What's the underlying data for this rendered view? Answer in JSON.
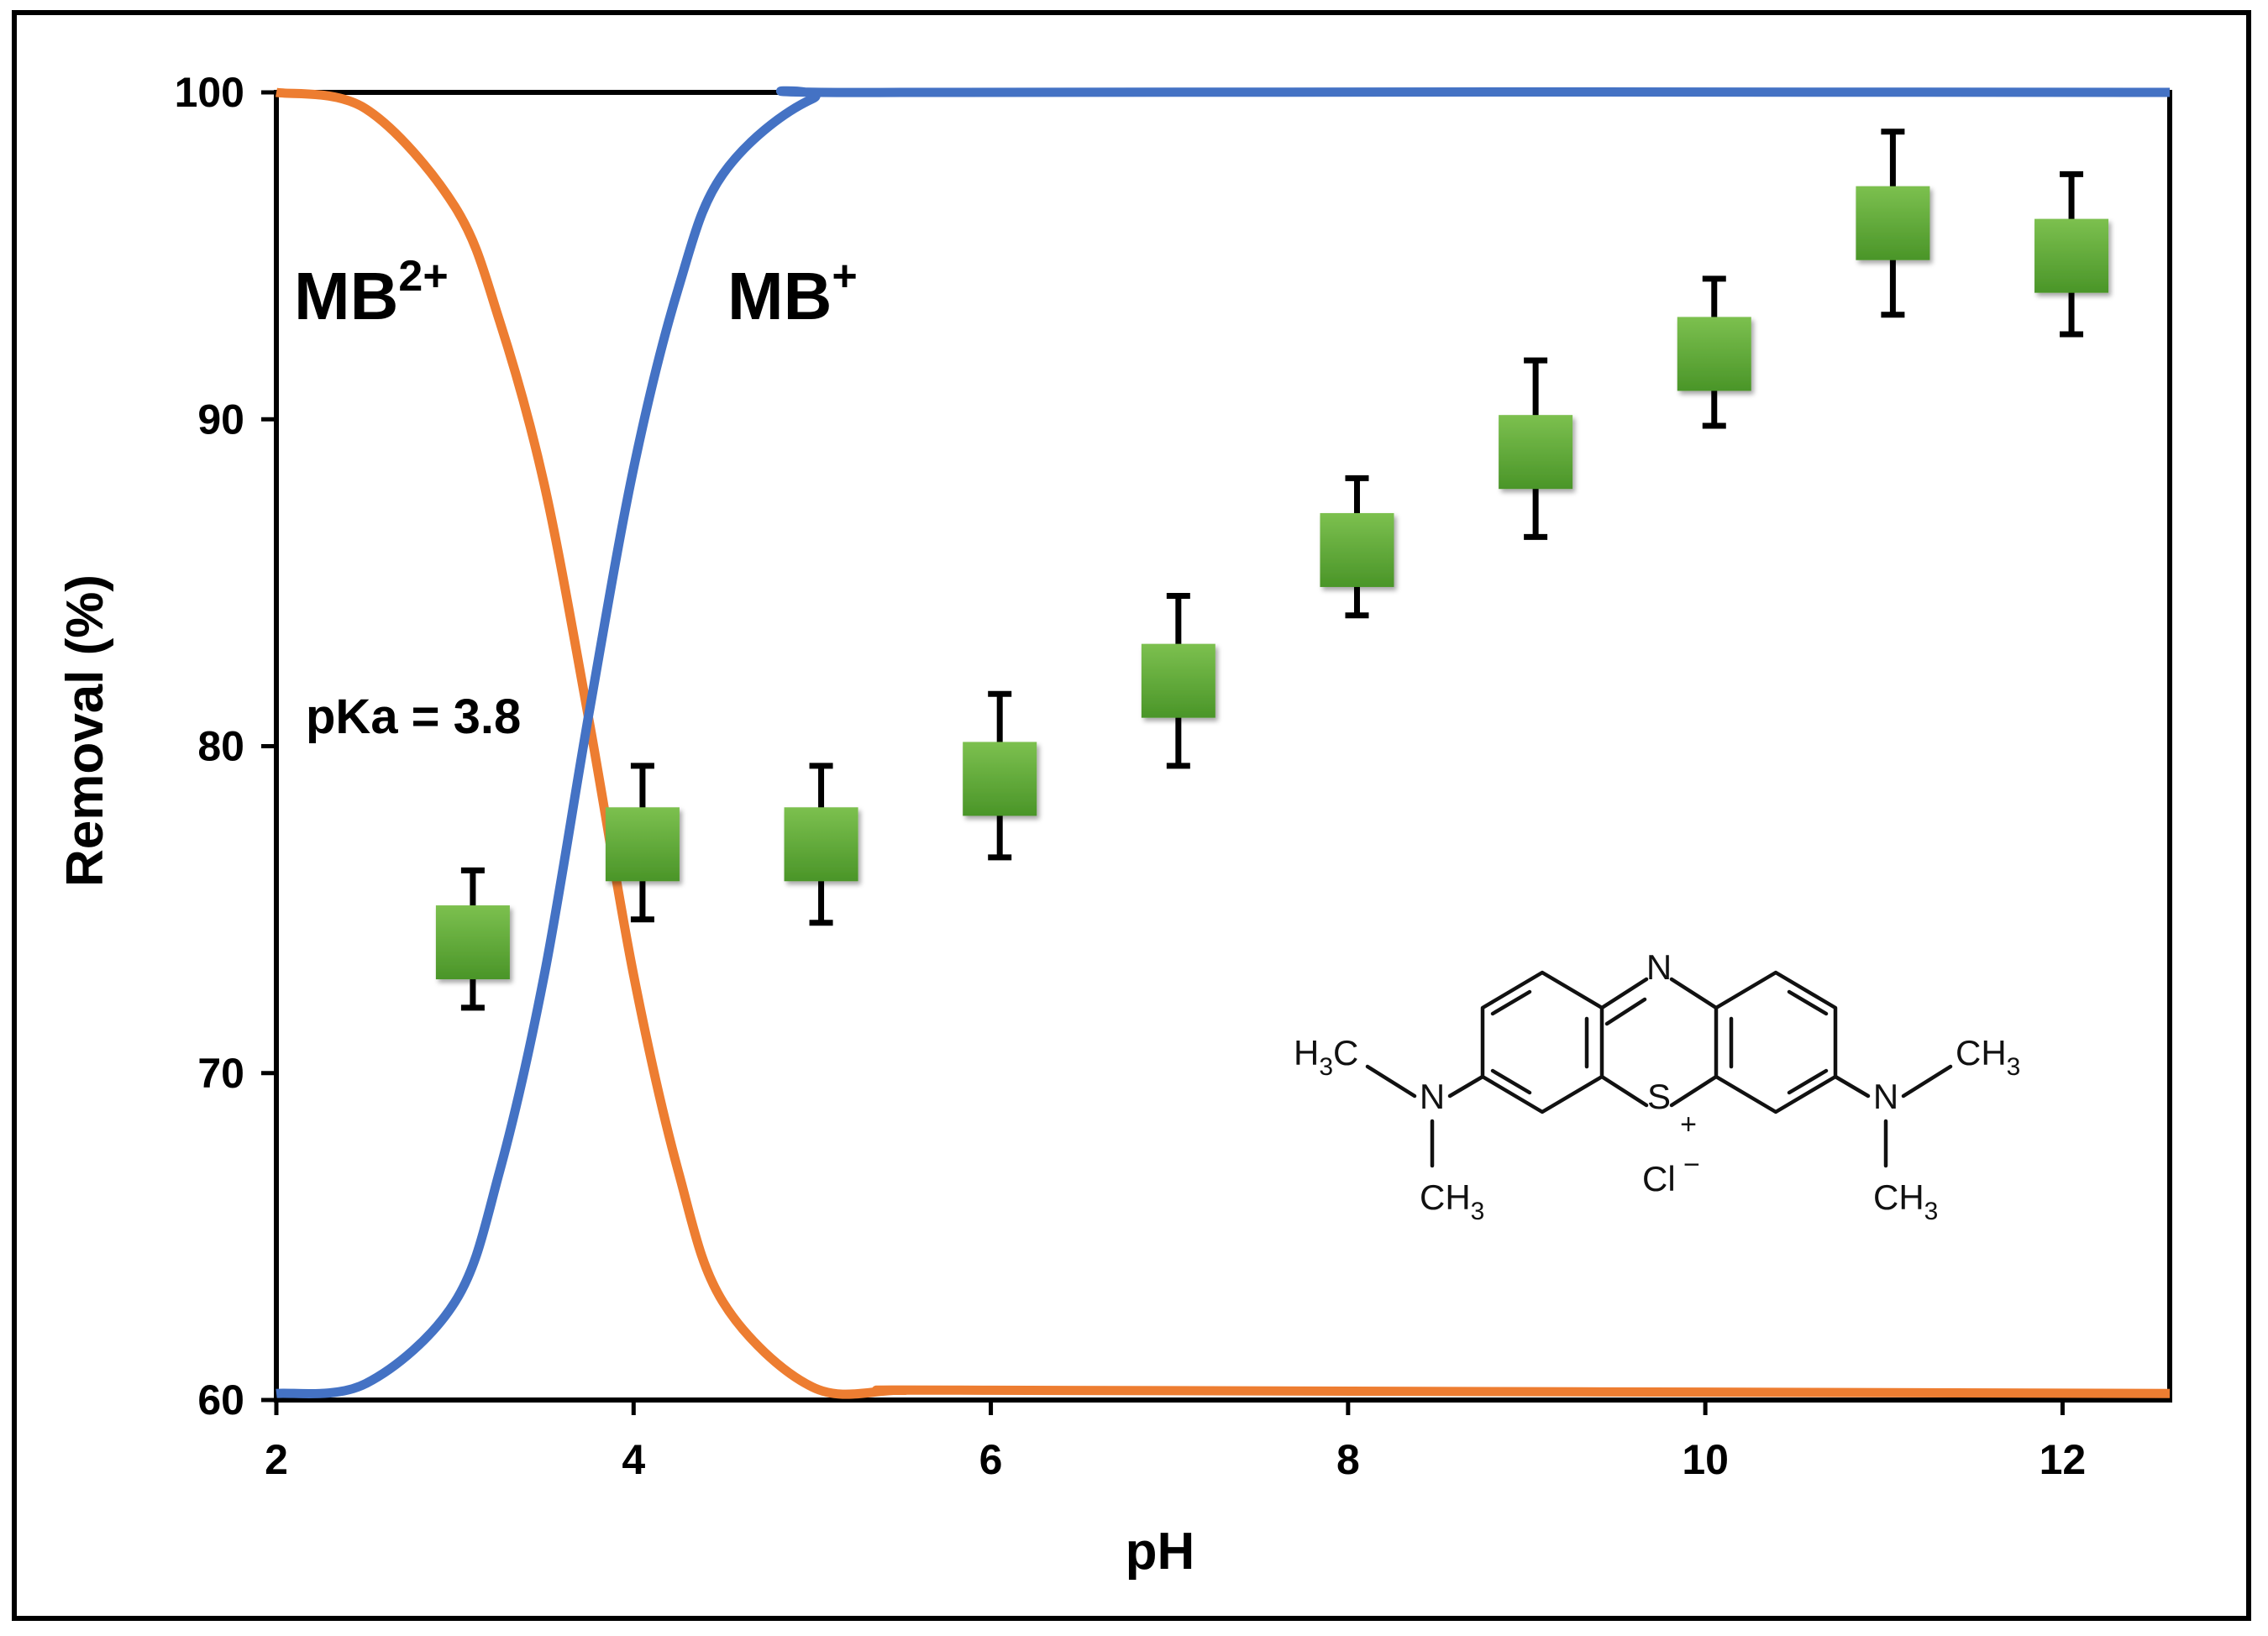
{
  "chart_data": {
    "type": "scatter",
    "xlabel": "pH",
    "ylabel": "Removal (%)",
    "xlim": [
      2,
      12.6
    ],
    "ylim": [
      60,
      100
    ],
    "x_ticks": [
      2,
      4,
      6,
      8,
      10,
      12
    ],
    "y_ticks": [
      60,
      70,
      80,
      90,
      100
    ],
    "grid": false,
    "series": [
      {
        "type": "scatter",
        "marker": "square",
        "color": "#5aa332",
        "x": [
          3.1,
          4.05,
          5.05,
          6.05,
          7.05,
          8.05,
          9.05,
          10.05,
          11.05,
          12.05
        ],
        "y": [
          74,
          77,
          77,
          79,
          82,
          86,
          89,
          92,
          96,
          95
        ],
        "err_low": [
          72,
          74.7,
          74.6,
          76.6,
          79.4,
          84,
          86.4,
          89.8,
          93.2,
          92.6
        ],
        "err_high": [
          76.2,
          79.4,
          79.4,
          81.6,
          84.6,
          88.2,
          91.8,
          94.3,
          98.8,
          97.5
        ]
      },
      {
        "type": "line",
        "name": "MB2+",
        "color": "#ed7d31",
        "x": [
          2,
          2.5,
          3,
          3.25,
          3.5,
          3.75,
          4,
          4.25,
          4.5,
          5,
          5.5,
          6,
          12.6
        ],
        "y": [
          100,
          99.5,
          96.5,
          93,
          88,
          80.8,
          73,
          67,
          63,
          60.4,
          60.3,
          60.3,
          60.2
        ]
      },
      {
        "type": "line",
        "name": "MB+",
        "color": "#4472c4",
        "x": [
          2,
          2.5,
          3,
          3.25,
          3.5,
          3.75,
          4,
          4.25,
          4.5,
          5,
          5.5,
          12.6
        ],
        "y": [
          60.2,
          60.5,
          63,
          67,
          73,
          81,
          88.5,
          94,
          97.5,
          99.8,
          100,
          100
        ]
      }
    ],
    "annotations": [
      {
        "text": "pKa = 3.8"
      }
    ]
  },
  "labels": {
    "mb2": {
      "base": "MB",
      "sup": "2+"
    },
    "mb1": {
      "base": "MB",
      "sup": "+"
    }
  },
  "structure": {
    "atoms": {
      "n_top": "N",
      "s": "S",
      "plus": "+",
      "cl": "Cl",
      "minus": "−",
      "n_left": "N",
      "n_right": "N",
      "h3c_left": "H",
      "h3c_left_sub": "3",
      "h3c_left_c": "C",
      "ch3_left_c": "CH",
      "ch3_left_sub": "3",
      "ch3_right_c": "CH",
      "ch3_right_sub": "3",
      "ch3_right_b": "CH",
      "ch3_right_b_sub": "3"
    }
  }
}
